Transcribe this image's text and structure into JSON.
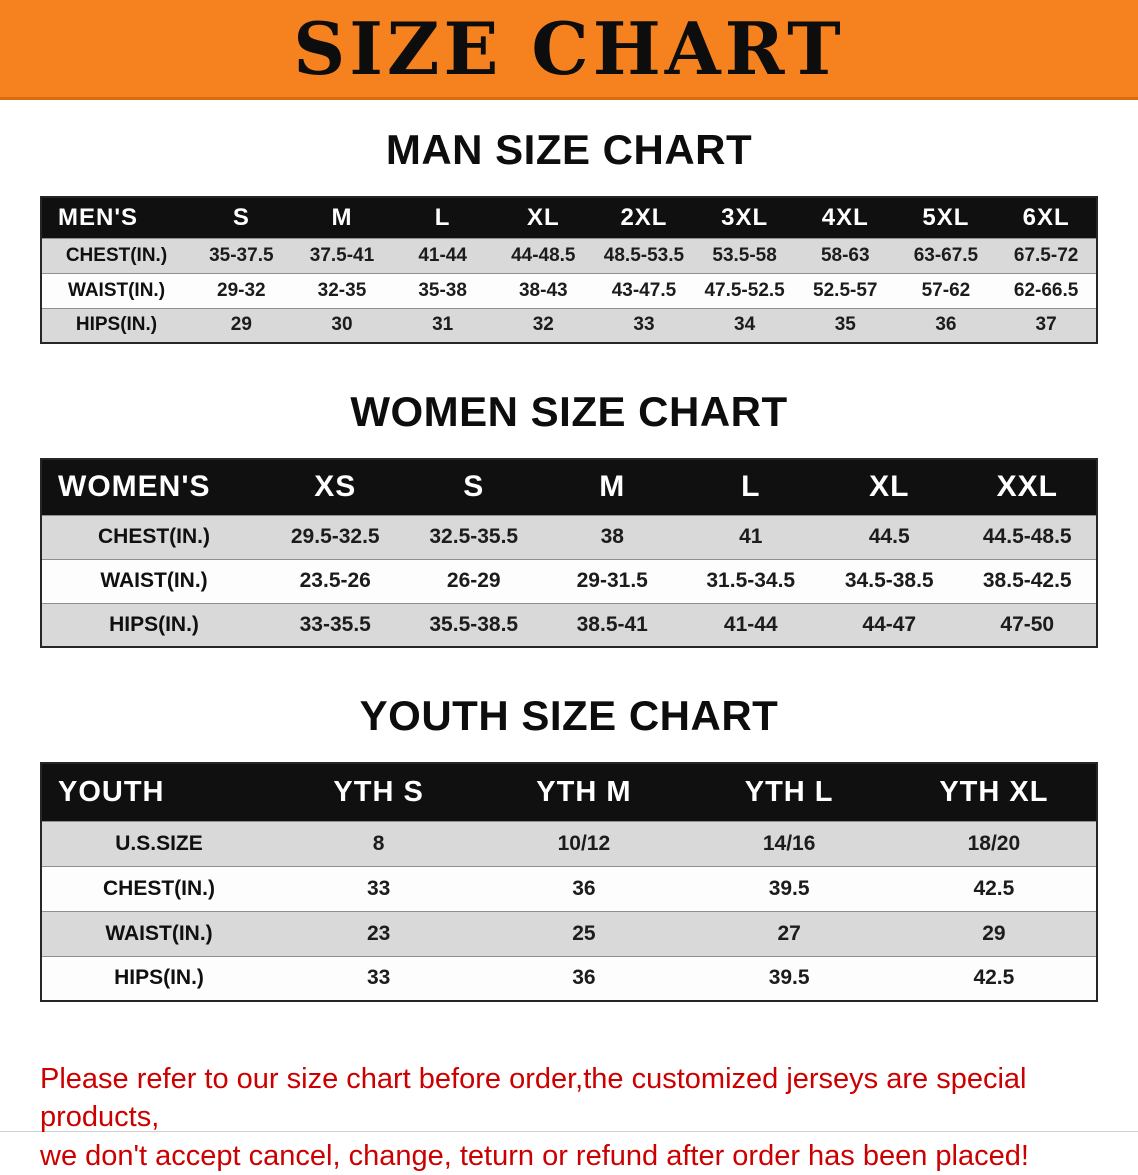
{
  "banner": {
    "title": "SIZE CHART",
    "bg_color": "#f5821f"
  },
  "sections": [
    {
      "id": "mens",
      "heading": "MAN SIZE CHART",
      "header": [
        "MEN'S",
        "S",
        "M",
        "L",
        "XL",
        "2XL",
        "3XL",
        "4XL",
        "5XL",
        "6XL"
      ],
      "rows": [
        {
          "label": "CHEST(IN.)",
          "values": [
            "35-37.5",
            "37.5-41",
            "41-44",
            "44-48.5",
            "48.5-53.5",
            "53.5-58",
            "58-63",
            "63-67.5",
            "67.5-72"
          ]
        },
        {
          "label": "WAIST(IN.)",
          "values": [
            "29-32",
            "32-35",
            "35-38",
            "38-43",
            "43-47.5",
            "47.5-52.5",
            "52.5-57",
            "57-62",
            "62-66.5"
          ]
        },
        {
          "label": "HIPS(IN.)",
          "values": [
            "29",
            "30",
            "31",
            "32",
            "33",
            "34",
            "35",
            "36",
            "37"
          ]
        }
      ]
    },
    {
      "id": "womens",
      "heading": "WOMEN SIZE CHART",
      "header": [
        "WOMEN'S",
        "XS",
        "S",
        "M",
        "L",
        "XL",
        "XXL"
      ],
      "rows": [
        {
          "label": "CHEST(IN.)",
          "values": [
            "29.5-32.5",
            "32.5-35.5",
            "38",
            "41",
            "44.5",
            "44.5-48.5"
          ]
        },
        {
          "label": "WAIST(IN.)",
          "values": [
            "23.5-26",
            "26-29",
            "29-31.5",
            "31.5-34.5",
            "34.5-38.5",
            "38.5-42.5"
          ]
        },
        {
          "label": "HIPS(IN.)",
          "values": [
            "33-35.5",
            "35.5-38.5",
            "38.5-41",
            "41-44",
            "44-47",
            "47-50"
          ]
        }
      ]
    },
    {
      "id": "youth",
      "heading": "YOUTH SIZE CHART",
      "header": [
        "YOUTH",
        "YTH S",
        "YTH M",
        "YTH L",
        "YTH XL"
      ],
      "rows": [
        {
          "label": "U.S.SIZE",
          "values": [
            "8",
            "10/12",
            "14/16",
            "18/20"
          ]
        },
        {
          "label": "CHEST(IN.)",
          "values": [
            "33",
            "36",
            "39.5",
            "42.5"
          ]
        },
        {
          "label": "WAIST(IN.)",
          "values": [
            "23",
            "25",
            "27",
            "29"
          ]
        },
        {
          "label": "HIPS(IN.)",
          "values": [
            "33",
            "36",
            "39.5",
            "42.5"
          ]
        }
      ]
    }
  ],
  "disclaimer": {
    "line1": "Please refer to our size chart before order,the customized jerseys are special products,",
    "line2": "we don't accept cancel, change, teturn or refund after order has been placed!",
    "color": "#cc0000"
  }
}
